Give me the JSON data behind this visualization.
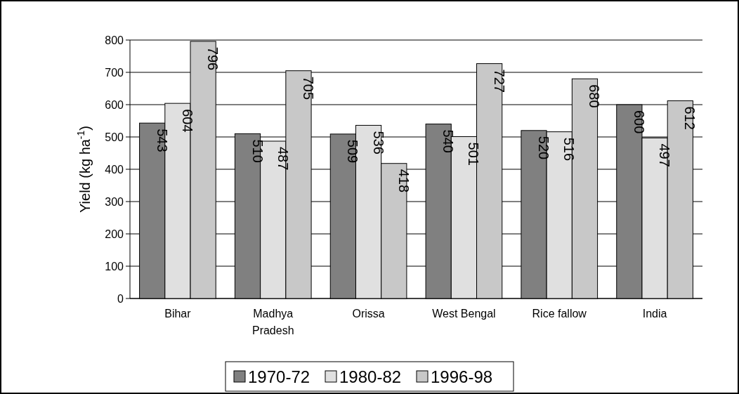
{
  "chart_data": {
    "type": "bar",
    "ylabel": "Yield (kg ha$^{-1}$)",
    "categories": [
      "Bihar",
      "Madhya Pradesh",
      "Orissa",
      "West Bengal",
      "Rice fallow",
      "India"
    ],
    "series": [
      {
        "name": "1970-72",
        "color": "#808080",
        "values": [
          543,
          510,
          509,
          540,
          520,
          600
        ]
      },
      {
        "name": "1980-82",
        "color": "#e0e0e0",
        "values": [
          604,
          487,
          536,
          501,
          516,
          497
        ]
      },
      {
        "name": "1996-98",
        "color": "#c8c8c8",
        "values": [
          796,
          705,
          418,
          727,
          680,
          612
        ]
      }
    ],
    "ylim": [
      0,
      800
    ],
    "yticks": [
      0,
      100,
      200,
      300,
      400,
      500,
      600,
      700,
      800
    ],
    "grid": "y",
    "legend": "bottom",
    "data_labels": true
  }
}
